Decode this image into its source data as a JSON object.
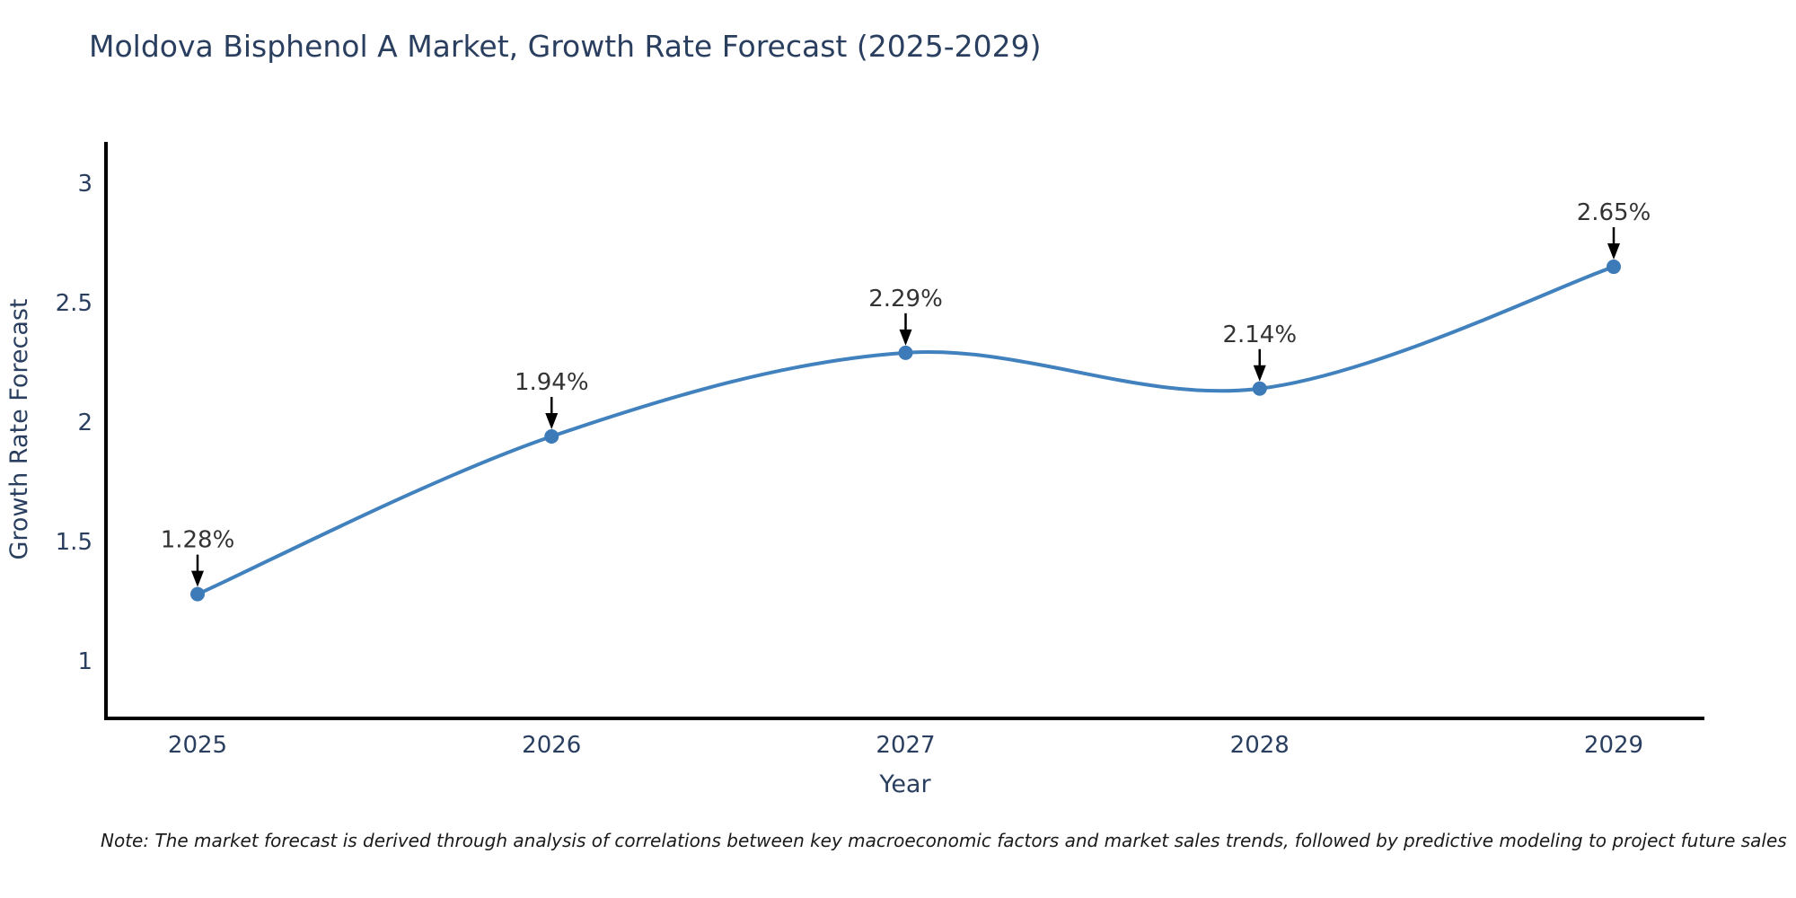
{
  "title": "Moldova Bisphenol A Market, Growth Rate Forecast (2025-2029)",
  "note": "Note: The market forecast is derived through analysis of correlations between key macroeconomic factors and market sales trends, followed by predictive modeling to project future sales",
  "chart_data": {
    "type": "line",
    "title": "Moldova Bisphenol A Market, Growth Rate Forecast (2025-2029)",
    "x": [
      "2025",
      "2026",
      "2027",
      "2028",
      "2029"
    ],
    "series": [
      {
        "name": "Growth Rate Forecast",
        "values": [
          1.28,
          1.94,
          2.29,
          2.14,
          2.65
        ]
      }
    ],
    "point_labels": [
      "1.28%",
      "1.94%",
      "2.29%",
      "2.14%",
      "2.65%"
    ],
    "xlabel": "Year",
    "ylabel": "Growth Rate Forecast",
    "y_ticks": [
      "1",
      "1.5",
      "2",
      "2.5",
      "3"
    ],
    "y_tick_values": [
      1,
      1.5,
      2,
      2.5,
      3
    ],
    "ylim": [
      0.76,
      3.165
    ],
    "line_shape": "spline",
    "grid": false,
    "legend_position": "none",
    "colors": {
      "line": "#4181bd",
      "marker": "#3d7ab8",
      "axis_line": "#000000",
      "tick_text": "#2a3f5f",
      "axis_title_text": "#2a3f5f",
      "annotation_text": "#333333",
      "annotation_arrow": "#000000",
      "title_text": "#2a3f5f",
      "background": "#ffffff"
    }
  }
}
